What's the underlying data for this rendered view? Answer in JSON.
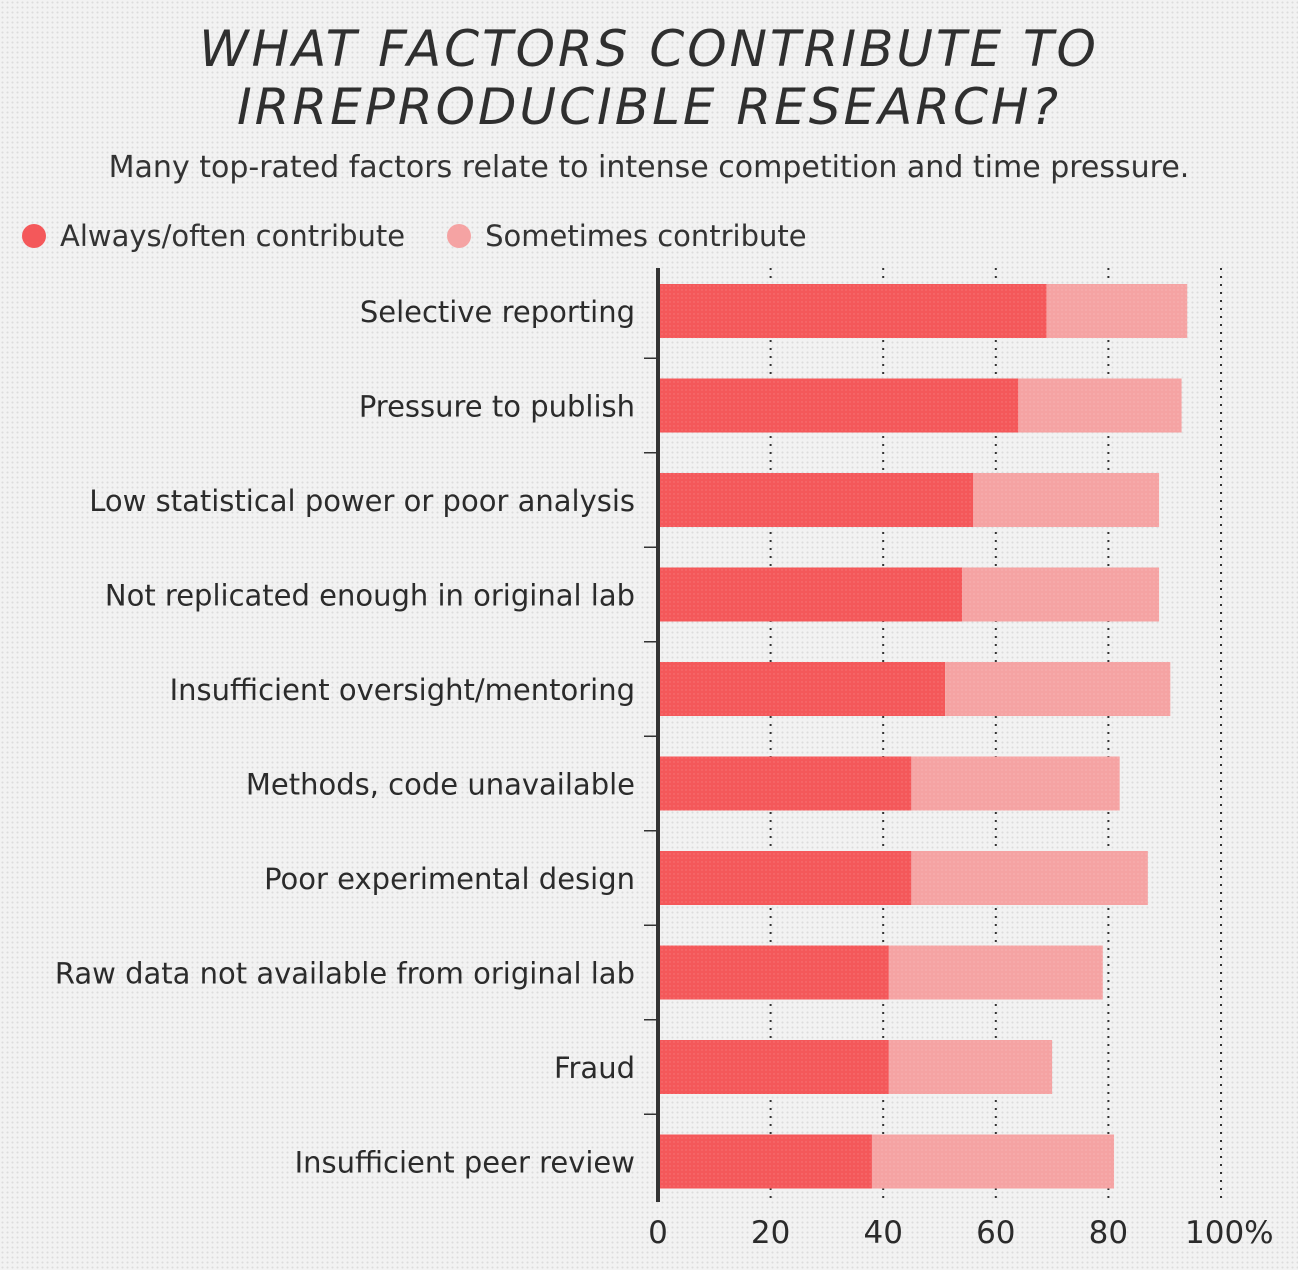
{
  "chart_data": {
    "type": "bar",
    "stacked": true,
    "orientation": "horizontal",
    "title_line1": "WHAT FACTORS CONTRIBUTE TO",
    "title_line2": "IRREPRODUCIBLE RESEARCH?",
    "subtitle": "Many top-rated factors relate to intense competition and time pressure.",
    "categories": [
      "Selective reporting",
      "Pressure to publish",
      "Low statistical power or poor analysis",
      "Not replicated enough in original lab",
      "Insufficient oversight/mentoring",
      "Methods, code unavailable",
      "Poor experimental design",
      "Raw data not available from original lab",
      "Fraud",
      "Insufficient peer review"
    ],
    "series": [
      {
        "name": "Always/often contribute",
        "color": "#f4585a",
        "values": [
          69,
          64,
          56,
          54,
          51,
          45,
          45,
          41,
          41,
          38
        ]
      },
      {
        "name": "Sometimes contribute",
        "color": "#f5a3a3",
        "values": [
          25,
          29,
          33,
          35,
          40,
          37,
          42,
          38,
          29,
          43
        ]
      }
    ],
    "xlim": [
      0,
      100
    ],
    "x_ticks": [
      "0",
      "20",
      "40",
      "60",
      "80",
      "100%"
    ],
    "grid": "dotted vertical",
    "legend_position": "top-left"
  }
}
